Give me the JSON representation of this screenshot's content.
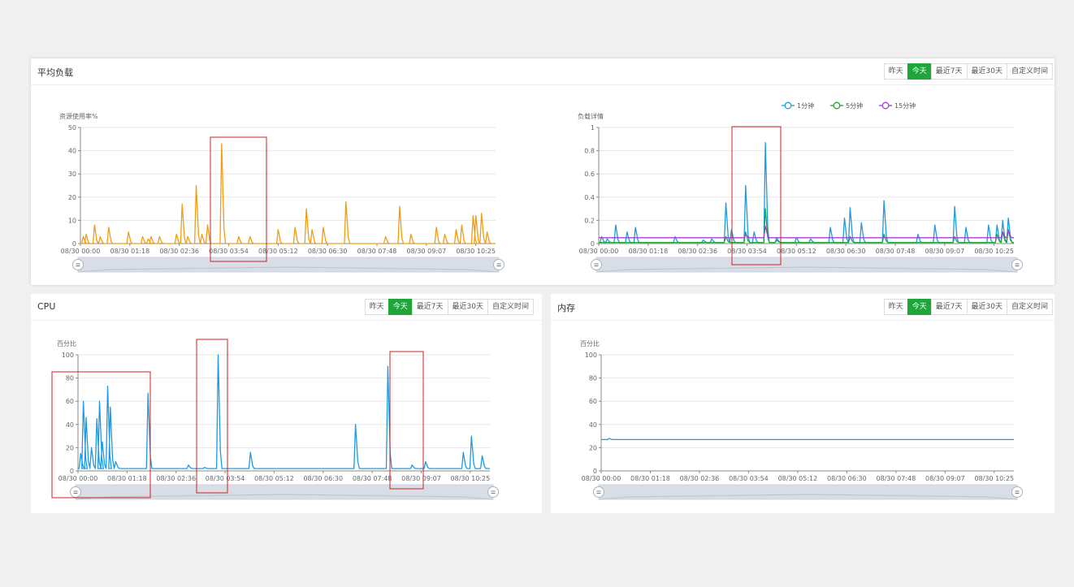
{
  "panels": {
    "load": {
      "title": "平均负载",
      "buttons": [
        {
          "label": "昨天",
          "active": false
        },
        {
          "label": "今天",
          "active": true
        },
        {
          "label": "最近7天",
          "active": false
        },
        {
          "label": "最近30天",
          "active": false
        },
        {
          "label": "自定义时间",
          "active": false
        }
      ]
    },
    "cpu": {
      "title": "CPU",
      "buttons": [
        {
          "label": "昨天",
          "active": false
        },
        {
          "label": "今天",
          "active": true
        },
        {
          "label": "最近7天",
          "active": false
        },
        {
          "label": "最近30天",
          "active": false
        },
        {
          "label": "自定义时间",
          "active": false
        }
      ]
    },
    "mem": {
      "title": "内存",
      "buttons": [
        {
          "label": "昨天",
          "active": false
        },
        {
          "label": "今天",
          "active": true
        },
        {
          "label": "最近7天",
          "active": false
        },
        {
          "label": "最近30天",
          "active": false
        },
        {
          "label": "自定义时间",
          "active": false
        }
      ]
    }
  },
  "colors": {
    "accent": "#20a53a",
    "resource": "#f39c12",
    "cpu": "#1e9be0",
    "mem": "#1e9be0",
    "load_1m": "#1e9be0",
    "load_5m": "#20a53a",
    "load_15m": "#a040d8",
    "highlight_box": "#cc2222"
  },
  "chart_data": [
    {
      "id": "resource",
      "type": "line",
      "ylabel": "资源使用率%",
      "ylim": [
        0,
        50
      ],
      "yticks": [
        0,
        10,
        20,
        30,
        40,
        50
      ],
      "xticks": [
        "08/30 00:00",
        "08/30 01:18",
        "08/30 02:36",
        "08/30 03:54",
        "08/30 05:12",
        "08/30 06:30",
        "08/30 07:48",
        "08/30 09:07",
        "08/30 10:25"
      ],
      "xrange_hours": [
        0,
        10.7
      ],
      "baseline": 0,
      "series": [
        {
          "color_key": "resource",
          "spikes": [
            [
              0.1,
              3
            ],
            [
              0.2,
              4
            ],
            [
              0.5,
              8
            ],
            [
              0.7,
              3
            ],
            [
              1.0,
              7
            ],
            [
              1.7,
              5
            ],
            [
              2.2,
              3
            ],
            [
              2.4,
              2
            ],
            [
              2.5,
              3
            ],
            [
              2.8,
              3
            ],
            [
              3.4,
              4
            ],
            [
              3.6,
              17
            ],
            [
              3.8,
              3
            ],
            [
              4.1,
              25
            ],
            [
              4.3,
              4
            ],
            [
              4.5,
              8
            ],
            [
              5.0,
              43
            ],
            [
              5.6,
              3
            ],
            [
              6.0,
              3
            ],
            [
              7.0,
              6
            ],
            [
              7.6,
              7
            ],
            [
              8.0,
              15
            ],
            [
              8.2,
              6
            ],
            [
              8.6,
              7
            ],
            [
              9.4,
              18
            ],
            [
              10.8,
              3
            ],
            [
              11.3,
              16
            ],
            [
              11.7,
              4
            ],
            [
              12.6,
              7
            ],
            [
              12.9,
              4
            ],
            [
              13.3,
              6
            ],
            [
              13.5,
              8
            ],
            [
              13.9,
              12
            ],
            [
              14.0,
              12
            ],
            [
              14.2,
              13
            ],
            [
              14.4,
              5
            ],
            [
              14.7,
              13
            ]
          ],
          "x_scale": 0.728
        }
      ]
    },
    {
      "id": "load",
      "type": "line",
      "ylabel": "负载详情",
      "ylim": [
        0,
        1
      ],
      "yticks": [
        0,
        0.2,
        0.4,
        0.6,
        0.8,
        1
      ],
      "xticks": [
        "08/30 00:00",
        "08/30 01:18",
        "08/30 02:36",
        "08/30 03:54",
        "08/30 05:12",
        "08/30 06:30",
        "08/30 07:48",
        "08/30 09:07",
        "08/30 10:25"
      ],
      "xrange_hours": [
        0,
        10.7
      ],
      "legend": {
        "placement": "top-right",
        "entries": [
          "1分钟",
          "5分钟",
          "15分钟"
        ]
      },
      "series": [
        {
          "name": "1分钟",
          "color_key": "load_1m",
          "baseline": 0.01,
          "spikes": [
            [
              0.1,
              0.06
            ],
            [
              0.3,
              0.04
            ],
            [
              0.6,
              0.16
            ],
            [
              1.0,
              0.1
            ],
            [
              1.3,
              0.14
            ],
            [
              2.7,
              0.06
            ],
            [
              3.7,
              0.03
            ],
            [
              4.0,
              0.04
            ],
            [
              4.5,
              0.35
            ],
            [
              4.7,
              0.12
            ],
            [
              5.2,
              0.5
            ],
            [
              5.5,
              0.1
            ],
            [
              5.9,
              0.87
            ],
            [
              6.3,
              0.05
            ],
            [
              7.0,
              0.05
            ],
            [
              7.5,
              0.04
            ],
            [
              8.2,
              0.14
            ],
            [
              8.7,
              0.22
            ],
            [
              8.9,
              0.31
            ],
            [
              9.3,
              0.18
            ],
            [
              10.1,
              0.37
            ],
            [
              11.3,
              0.08
            ],
            [
              11.9,
              0.16
            ],
            [
              12.6,
              0.32
            ],
            [
              13.0,
              0.14
            ],
            [
              13.8,
              0.16
            ],
            [
              14.1,
              0.16
            ],
            [
              14.3,
              0.2
            ],
            [
              14.5,
              0.22
            ],
            [
              14.7,
              0.27
            ]
          ],
          "x_scale": 0.728
        },
        {
          "name": "5分钟",
          "color_key": "load_5m",
          "baseline": 0.01,
          "spikes": [
            [
              4.5,
              0.06
            ],
            [
              5.2,
              0.1
            ],
            [
              5.9,
              0.3
            ],
            [
              6.3,
              0.03
            ],
            [
              8.9,
              0.06
            ],
            [
              10.1,
              0.08
            ],
            [
              12.6,
              0.06
            ],
            [
              14.1,
              0.08
            ],
            [
              14.3,
              0.1
            ],
            [
              14.5,
              0.12
            ],
            [
              14.7,
              0.1
            ]
          ],
          "x_scale": 0.728
        },
        {
          "name": "15分钟",
          "color_key": "load_15m",
          "baseline": 0.05,
          "spikes": [
            [
              5.2,
              0.08
            ],
            [
              5.9,
              0.15
            ],
            [
              14.3,
              0.1
            ],
            [
              14.5,
              0.11
            ]
          ],
          "x_scale": 0.728
        }
      ]
    },
    {
      "id": "cpu",
      "type": "line",
      "ylabel": "百分比",
      "ylim": [
        0,
        100
      ],
      "yticks": [
        0,
        20,
        40,
        60,
        80,
        100
      ],
      "xticks": [
        "08/30 00:00",
        "08/30 01:18",
        "08/30 02:36",
        "08/30 03:54",
        "08/30 05:12",
        "08/30 06:30",
        "08/30 07:48",
        "08/30 09:07",
        "08/30 10:25"
      ],
      "xrange_hours": [
        0,
        10.7
      ],
      "baseline": 2,
      "series": [
        {
          "color_key": "cpu",
          "spikes": [
            [
              0.1,
              15
            ],
            [
              0.2,
              60
            ],
            [
              0.3,
              46
            ],
            [
              0.5,
              20
            ],
            [
              0.7,
              45
            ],
            [
              0.8,
              60
            ],
            [
              0.9,
              25
            ],
            [
              1.1,
              73
            ],
            [
              1.2,
              55
            ],
            [
              1.4,
              8
            ],
            [
              2.6,
              67
            ],
            [
              4.1,
              5
            ],
            [
              4.7,
              3
            ],
            [
              5.2,
              100
            ],
            [
              6.4,
              16
            ],
            [
              10.3,
              40
            ],
            [
              11.5,
              90
            ],
            [
              12.4,
              5
            ],
            [
              12.9,
              8
            ],
            [
              14.3,
              16
            ],
            [
              14.6,
              30
            ],
            [
              15.0,
              13
            ]
          ],
          "x_scale": 0.7
        }
      ]
    },
    {
      "id": "mem",
      "type": "line",
      "ylabel": "百分比",
      "ylim": [
        0,
        100
      ],
      "yticks": [
        0,
        20,
        40,
        60,
        80,
        100
      ],
      "xticks": [
        "08/30 00:00",
        "08/30 01:18",
        "08/30 02:36",
        "08/30 03:54",
        "08/30 05:12",
        "08/30 06:30",
        "08/30 07:48",
        "08/30 09:07",
        "08/30 10:25"
      ],
      "xrange_hours": [
        0,
        10.7
      ],
      "baseline": 27,
      "series": [
        {
          "color_key": "mem",
          "spikes": [
            [
              0.3,
              28
            ]
          ],
          "x_scale": 0.7
        }
      ]
    }
  ]
}
